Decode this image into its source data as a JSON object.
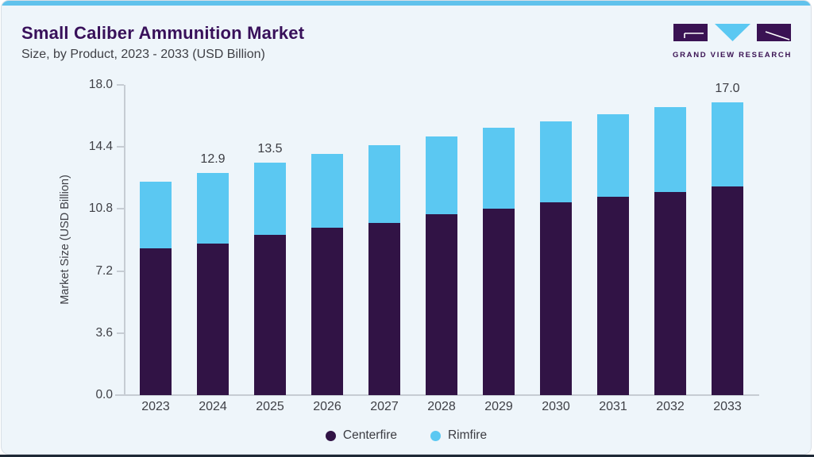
{
  "header": {
    "title": "Small Caliber Ammunition Market",
    "subtitle": "Size, by Product, 2023 - 2033 (USD Billion)"
  },
  "logo": {
    "brand": "GRAND VIEW RESEARCH",
    "mark_icons": [
      "gvr-g-block-icon",
      "gvr-v-triangle-icon",
      "gvr-r-block-icon"
    ],
    "purple": "#3a1253",
    "blue": "#5bc8f2"
  },
  "chart_data": {
    "type": "bar",
    "stacked": true,
    "title": "Small Caliber Ammunition Market Size, by Product, 2023 - 2033 (USD Billion)",
    "categories": [
      "2023",
      "2024",
      "2025",
      "2026",
      "2027",
      "2028",
      "2029",
      "2030",
      "2031",
      "2032",
      "2033"
    ],
    "series": [
      {
        "name": "Centerfire",
        "color": "#311345",
        "values": [
          8.5,
          8.8,
          9.3,
          9.7,
          10.0,
          10.5,
          10.8,
          11.2,
          11.5,
          11.8,
          12.1
        ]
      },
      {
        "name": "Rimfire",
        "color": "#5bc8f2",
        "values": [
          3.9,
          4.1,
          4.2,
          4.3,
          4.5,
          4.5,
          4.7,
          4.7,
          4.8,
          4.9,
          4.9
        ]
      }
    ],
    "totals": [
      12.4,
      12.9,
      13.5,
      14.0,
      14.5,
      15.0,
      15.5,
      15.9,
      16.3,
      16.7,
      17.0
    ],
    "bar_labels": [
      "",
      "12.9",
      "13.5",
      "",
      "",
      "",
      "",
      "",
      "",
      "",
      "17.0"
    ],
    "xlabel": "",
    "ylabel": "Market Size (USD Billion)",
    "ylim": [
      0,
      18
    ],
    "yticks": [
      "18.0",
      "14.4",
      "10.8",
      "7.2",
      "3.6",
      "0.0"
    ],
    "grid": false,
    "legend_position": "bottom"
  },
  "colors": {
    "card_background": "#eef5fa",
    "top_strip": "#60c2ec",
    "bottom_strip": "#1e2835",
    "title_text": "#38105a",
    "body_text": "#3f4046",
    "axis_line": "#c6ccd3"
  }
}
